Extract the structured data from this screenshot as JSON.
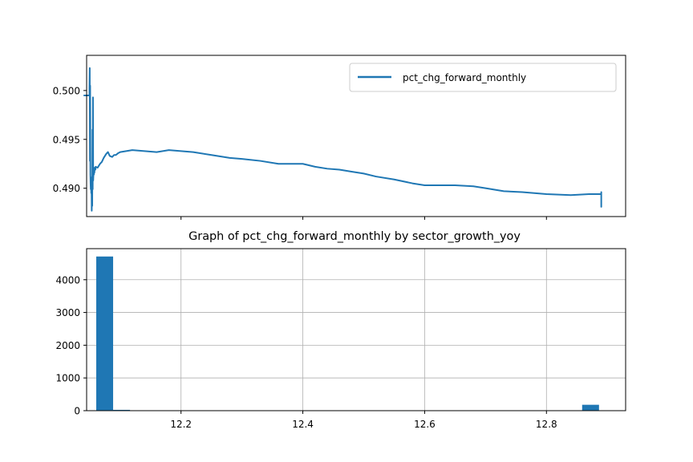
{
  "chart_data": [
    {
      "type": "line",
      "title": "",
      "xlabel": "",
      "ylabel": "",
      "x_range": [
        12.045,
        12.93
      ],
      "ylim": [
        0.4871,
        0.5036
      ],
      "yticks": [
        "0.490",
        "0.495",
        "0.500"
      ],
      "xticks_labeled": false,
      "grid": false,
      "legend_position": "top-right",
      "series": [
        {
          "name": "pct_chg_forward_monthly",
          "color": "#1f77b4",
          "x": [
            12.04,
            12.0497,
            12.0497,
            12.0501,
            12.0505,
            12.0508,
            12.0512,
            12.0515,
            12.0518,
            12.0522,
            12.0526,
            12.053,
            12.0534,
            12.0538,
            12.0542,
            12.0546,
            12.055,
            12.0554,
            12.0558,
            12.0562,
            12.0566,
            12.057,
            12.0574,
            12.0578,
            12.0582,
            12.0586,
            12.059,
            12.0594,
            12.0598,
            12.063,
            12.067,
            12.07,
            12.073,
            12.077,
            12.08,
            12.083,
            12.087,
            12.09,
            12.093,
            12.097,
            12.1,
            12.11,
            12.12,
            12.14,
            12.16,
            12.18,
            12.2,
            12.22,
            12.25,
            12.28,
            12.3,
            12.33,
            12.36,
            12.38,
            12.4,
            12.42,
            12.44,
            12.46,
            12.48,
            12.5,
            12.52,
            12.55,
            12.58,
            12.6,
            12.62,
            12.65,
            12.68,
            12.7,
            12.73,
            12.76,
            12.8,
            12.84,
            12.87,
            12.89,
            12.89,
            12.89,
            12.89
          ],
          "y": [
            0.4995,
            0.4995,
            0.5002,
            0.5023,
            0.4928,
            0.5005,
            0.4914,
            0.4905,
            0.4899,
            0.491,
            0.4895,
            0.4911,
            0.4877,
            0.49,
            0.4882,
            0.496,
            0.4899,
            0.4993,
            0.4908,
            0.4914,
            0.4918,
            0.4914,
            0.4919,
            0.4916,
            0.4921,
            0.492,
            0.4921,
            0.4919,
            0.4922,
            0.4921,
            0.4925,
            0.4927,
            0.4931,
            0.4935,
            0.4937,
            0.4933,
            0.4932,
            0.4934,
            0.4934,
            0.4936,
            0.4937,
            0.4938,
            0.4939,
            0.4938,
            0.4937,
            0.4939,
            0.4938,
            0.4937,
            0.4934,
            0.4931,
            0.493,
            0.4928,
            0.4925,
            0.4925,
            0.4925,
            0.4922,
            0.492,
            0.4919,
            0.4917,
            0.4915,
            0.4912,
            0.4909,
            0.4905,
            0.4903,
            0.4903,
            0.4903,
            0.4902,
            0.49,
            0.4897,
            0.4896,
            0.4894,
            0.4893,
            0.4894,
            0.4894,
            0.4881,
            0.4896,
            0.4884
          ]
        }
      ]
    },
    {
      "type": "bar",
      "title": "Graph of pct_chg_forward_monthly by sector_growth_yoy",
      "xlabel": "",
      "ylabel": "",
      "xlim": [
        12.045,
        12.93
      ],
      "ylim": [
        0,
        4950
      ],
      "xticks": [
        "12.2",
        "12.4",
        "12.6",
        "12.8"
      ],
      "yticks": [
        "0",
        "1000",
        "2000",
        "3000",
        "4000"
      ],
      "grid": true,
      "color": "#1f77b4",
      "bins": [
        {
          "start": 12.0608,
          "end": 12.0885,
          "value": 4710
        },
        {
          "start": 12.0885,
          "end": 12.1162,
          "value": 25
        },
        {
          "start": 12.8586,
          "end": 12.8863,
          "value": 180
        }
      ]
    }
  ]
}
